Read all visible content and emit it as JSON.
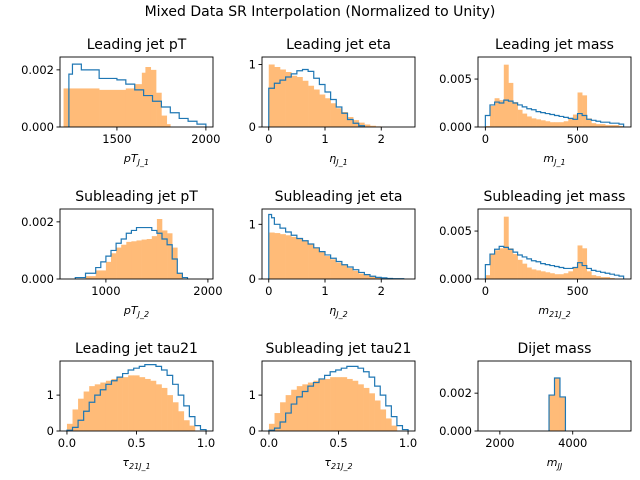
{
  "colors": {
    "filled": "#ffbb78",
    "step": "#1f77b4"
  },
  "chart_data": {
    "title": "Mixed Data SR Interpolation (Normalized to Unity)",
    "panels": [
      {
        "type": "histogram",
        "title": "Leading jet pT",
        "xlabel": "pT_{J_1}",
        "xlim": [
          1180,
          2040
        ],
        "ylim": [
          0,
          0.00245
        ],
        "xticks": [
          1500,
          2000
        ],
        "xtick_labels": [
          "1500",
          "2000"
        ],
        "yticks": [
          0,
          0.002
        ],
        "ytick_labels": [
          "0.000",
          "0.002"
        ],
        "filled": {
          "edges": [
            1200,
            1400,
            1550,
            1600,
            1640,
            1660,
            1690,
            1720,
            1750,
            1780,
            1800
          ],
          "values": [
            0.00135,
            0.0013,
            0.00135,
            0.0015,
            0.0019,
            0.0021,
            0.002,
            0.0012,
            0.0004,
            0.0001
          ]
        },
        "step": {
          "edges": [
            1230,
            1250,
            1300,
            1400,
            1500,
            1550,
            1600,
            1650,
            1700,
            1750,
            1800,
            1850,
            1900,
            1950,
            2000
          ],
          "values": [
            0.00185,
            0.0022,
            0.002,
            0.0017,
            0.00165,
            0.0015,
            0.0013,
            0.0011,
            0.0009,
            0.0007,
            0.0005,
            0.0003,
            0.0002,
            0.0001
          ]
        }
      },
      {
        "type": "histogram",
        "title": "Leading jet eta",
        "xlabel": "η_{J_1}",
        "xlim": [
          -0.12,
          2.6
        ],
        "ylim": [
          0,
          1.12
        ],
        "xticks": [
          0,
          1,
          2
        ],
        "xtick_labels": [
          "0",
          "1",
          "2"
        ],
        "yticks": [
          0,
          1
        ],
        "ytick_labels": [
          "0",
          "1"
        ],
        "filled": {
          "edges": [
            0,
            0.1,
            0.2,
            0.3,
            0.4,
            0.5,
            0.6,
            0.7,
            0.8,
            0.9,
            1.0,
            1.1,
            1.2,
            1.3,
            1.4,
            1.5,
            1.6,
            1.7,
            1.8,
            1.9,
            2.0
          ],
          "values": [
            1.0,
            0.96,
            0.92,
            0.88,
            0.82,
            0.8,
            0.74,
            0.66,
            0.6,
            0.52,
            0.46,
            0.38,
            0.3,
            0.24,
            0.16,
            0.11,
            0.07,
            0.04,
            0.02,
            0.01
          ]
        },
        "step": {
          "edges": [
            0,
            0.1,
            0.2,
            0.3,
            0.4,
            0.5,
            0.6,
            0.7,
            0.8,
            0.9,
            1.0,
            1.1,
            1.2,
            1.3,
            1.4,
            1.5,
            1.6,
            1.7
          ],
          "values": [
            0.62,
            0.7,
            0.75,
            0.8,
            0.85,
            0.9,
            0.92,
            0.89,
            0.78,
            0.68,
            0.56,
            0.44,
            0.32,
            0.22,
            0.12,
            0.06,
            0.02
          ]
        }
      },
      {
        "type": "histogram",
        "title": "Leading jet mass",
        "xlabel": "m_{J_1}",
        "xlim": [
          -40,
          790
        ],
        "ylim": [
          0,
          0.0073
        ],
        "xticks": [
          0,
          500
        ],
        "xtick_labels": [
          "0",
          "500"
        ],
        "yticks": [
          0,
          0.005
        ],
        "ytick_labels": [
          "0.000",
          "0.005"
        ],
        "filled": {
          "edges": [
            0,
            25,
            50,
            75,
            100,
            125,
            150,
            175,
            200,
            225,
            250,
            275,
            300,
            325,
            350,
            375,
            400,
            425,
            450,
            475,
            500,
            525,
            550,
            575,
            600,
            625,
            650,
            675,
            700,
            725,
            750
          ],
          "values": [
            0.0001,
            0.0022,
            0.003,
            0.0028,
            0.0065,
            0.0046,
            0.0026,
            0.0018,
            0.0014,
            0.0011,
            0.0009,
            0.0008,
            0.0007,
            0.0006,
            0.0005,
            0.0005,
            0.0005,
            0.0006,
            0.0009,
            0.0013,
            0.0036,
            0.0033,
            0.0009,
            0.0004,
            0.0003,
            0.0003,
            0.0002,
            0.0002,
            0.0002,
            0.0001
          ]
        },
        "step": {
          "edges": [
            0,
            25,
            50,
            75,
            100,
            125,
            150,
            175,
            200,
            225,
            250,
            275,
            300,
            325,
            350,
            375,
            400,
            425,
            450,
            475,
            500,
            525,
            550,
            575,
            600,
            625,
            650,
            675,
            700,
            725,
            750
          ],
          "values": [
            0.0012,
            0.0023,
            0.0026,
            0.0025,
            0.0028,
            0.0027,
            0.0025,
            0.0023,
            0.0021,
            0.0019,
            0.0018,
            0.0016,
            0.0015,
            0.0014,
            0.0013,
            0.0012,
            0.0011,
            0.001,
            0.0009,
            0.0008,
            0.0014,
            0.0012,
            0.0008,
            0.0007,
            0.0006,
            0.0005,
            0.0005,
            0.0004,
            0.0004,
            0.0003
          ]
        }
      },
      {
        "type": "histogram",
        "title": "Subleading jet pT",
        "xlabel": "pT_{J_2}",
        "xlim": [
          550,
          2050
        ],
        "ylim": [
          0,
          0.00245
        ],
        "xticks": [
          1000,
          2000
        ],
        "xtick_labels": [
          "1000",
          "2000"
        ],
        "yticks": [
          0,
          0.002
        ],
        "ytick_labels": [
          "0.000",
          "0.002"
        ],
        "filled": {
          "edges": [
            800,
            900,
            1000,
            1050,
            1100,
            1150,
            1200,
            1250,
            1300,
            1350,
            1400,
            1450,
            1500,
            1550,
            1600,
            1650,
            1700,
            1750
          ],
          "values": [
            0.0001,
            0.0003,
            0.0006,
            0.0009,
            0.0011,
            0.0012,
            0.0013,
            0.00132,
            0.00135,
            0.00138,
            0.0014,
            0.0015,
            0.0021,
            0.0017,
            0.0016,
            0.0011,
            0.0002
          ]
        },
        "step": {
          "edges": [
            700,
            800,
            900,
            950,
            1000,
            1050,
            1100,
            1150,
            1200,
            1250,
            1300,
            1350,
            1400,
            1450,
            1500,
            1550,
            1600,
            1650,
            1700,
            1750,
            1800
          ],
          "values": [
            5e-05,
            0.0002,
            0.0004,
            0.0006,
            0.0008,
            0.001,
            0.00125,
            0.0014,
            0.0016,
            0.0017,
            0.0018,
            0.0018,
            0.0018,
            0.0017,
            0.0016,
            0.0014,
            0.0012,
            0.0007,
            0.0002,
            5e-05
          ]
        }
      },
      {
        "type": "histogram",
        "title": "Subleading jet eta",
        "xlabel": "η_{J_2}",
        "xlim": [
          -0.12,
          2.6
        ],
        "ylim": [
          0,
          1.28
        ],
        "xticks": [
          0,
          1,
          2
        ],
        "xtick_labels": [
          "0",
          "1",
          "2"
        ],
        "yticks": [
          0,
          1
        ],
        "ytick_labels": [
          "0",
          "1"
        ],
        "filled": {
          "edges": [
            0,
            0.1,
            0.2,
            0.3,
            0.4,
            0.5,
            0.6,
            0.7,
            0.8,
            0.9,
            1.0,
            1.1,
            1.2,
            1.3,
            1.4,
            1.5,
            1.6,
            1.7,
            1.8,
            1.9,
            2.0
          ],
          "values": [
            0.85,
            0.84,
            0.82,
            0.8,
            0.77,
            0.74,
            0.7,
            0.64,
            0.57,
            0.5,
            0.42,
            0.36,
            0.3,
            0.25,
            0.2,
            0.15,
            0.1,
            0.07,
            0.05,
            0.03
          ]
        },
        "step": {
          "edges": [
            0,
            0.05,
            0.1,
            0.2,
            0.3,
            0.4,
            0.5,
            0.6,
            0.7,
            0.8,
            0.9,
            1.0,
            1.1,
            1.2,
            1.3,
            1.4,
            1.5,
            1.6,
            1.7,
            1.8,
            1.9,
            2.0,
            2.1,
            2.2,
            2.3,
            2.4
          ],
          "values": [
            1.18,
            1.12,
            1.0,
            0.93,
            0.86,
            0.8,
            0.74,
            0.7,
            0.64,
            0.57,
            0.5,
            0.44,
            0.38,
            0.32,
            0.26,
            0.22,
            0.17,
            0.12,
            0.08,
            0.05,
            0.03,
            0.02,
            0.01,
            0.005,
            0.005
          ]
        }
      },
      {
        "type": "histogram",
        "title": "Subleading jet mass",
        "xlabel": "m_{21J_2}",
        "xlim": [
          -40,
          790
        ],
        "ylim": [
          0,
          0.0073
        ],
        "xticks": [
          0,
          500
        ],
        "xtick_labels": [
          "0",
          "500"
        ],
        "yticks": [
          0,
          0.005
        ],
        "ytick_labels": [
          "0.000",
          "0.005"
        ],
        "filled": {
          "edges": [
            0,
            25,
            50,
            75,
            100,
            125,
            150,
            175,
            200,
            225,
            250,
            275,
            300,
            325,
            350,
            375,
            400,
            425,
            450,
            475,
            500,
            525,
            550,
            575,
            600,
            625,
            650,
            675,
            700
          ],
          "values": [
            0.0004,
            0.0026,
            0.003,
            0.0032,
            0.0065,
            0.0032,
            0.0026,
            0.002,
            0.0016,
            0.0012,
            0.001,
            0.0009,
            0.0008,
            0.0007,
            0.0006,
            0.0005,
            0.0005,
            0.0006,
            0.0008,
            0.0012,
            0.0035,
            0.0032,
            0.0008,
            0.0004,
            0.0003,
            0.0002,
            0.0002,
            0.0001
          ]
        },
        "step": {
          "edges": [
            0,
            25,
            50,
            75,
            100,
            125,
            150,
            175,
            200,
            225,
            250,
            275,
            300,
            325,
            350,
            375,
            400,
            425,
            450,
            475,
            500,
            525,
            550,
            575,
            600,
            625,
            650,
            675,
            700,
            725,
            750
          ],
          "values": [
            0.0015,
            0.0026,
            0.0031,
            0.0034,
            0.0033,
            0.0031,
            0.0028,
            0.0025,
            0.0023,
            0.0021,
            0.0019,
            0.0018,
            0.0016,
            0.0015,
            0.0014,
            0.0013,
            0.0012,
            0.0011,
            0.0011,
            0.0012,
            0.0017,
            0.0014,
            0.0011,
            0.0009,
            0.0008,
            0.0007,
            0.0006,
            0.0005,
            0.0004,
            0.0003
          ]
        }
      },
      {
        "type": "histogram",
        "title": "Leading jet tau21",
        "xlabel": "τ_{21J_1}",
        "xlim": [
          -0.05,
          1.05
        ],
        "ylim": [
          0,
          1.95
        ],
        "xticks": [
          0.0,
          0.5,
          1.0
        ],
        "xtick_labels": [
          "0.0",
          "0.5",
          "1.0"
        ],
        "yticks": [
          0,
          1
        ],
        "ytick_labels": [
          "0",
          "1"
        ],
        "filled": {
          "edges": [
            0.0,
            0.04,
            0.08,
            0.12,
            0.16,
            0.2,
            0.24,
            0.28,
            0.32,
            0.36,
            0.4,
            0.44,
            0.48,
            0.52,
            0.56,
            0.6,
            0.64,
            0.68,
            0.72,
            0.76,
            0.8,
            0.84,
            0.88,
            0.92
          ],
          "values": [
            0.2,
            0.6,
            0.9,
            1.1,
            1.25,
            1.3,
            1.35,
            1.4,
            1.45,
            1.5,
            1.5,
            1.55,
            1.55,
            1.5,
            1.45,
            1.4,
            1.3,
            1.2,
            1.0,
            0.8,
            0.55,
            0.3,
            0.15
          ]
        },
        "step": {
          "edges": [
            0.0,
            0.04,
            0.08,
            0.12,
            0.16,
            0.2,
            0.24,
            0.28,
            0.32,
            0.36,
            0.4,
            0.44,
            0.48,
            0.52,
            0.56,
            0.6,
            0.64,
            0.68,
            0.72,
            0.76,
            0.8,
            0.84,
            0.88,
            0.92,
            0.96,
            1.0
          ],
          "values": [
            0.02,
            0.1,
            0.3,
            0.55,
            0.8,
            1.0,
            1.15,
            1.3,
            1.4,
            1.5,
            1.6,
            1.7,
            1.75,
            1.8,
            1.85,
            1.85,
            1.8,
            1.7,
            1.55,
            1.3,
            1.0,
            0.7,
            0.4,
            0.15,
            0.04
          ]
        }
      },
      {
        "type": "histogram",
        "title": "Subleading jet tau21",
        "xlabel": "τ_{21J_2}",
        "xlim": [
          -0.05,
          1.05
        ],
        "ylim": [
          0,
          1.95
        ],
        "xticks": [
          0.0,
          0.5,
          1.0
        ],
        "xtick_labels": [
          "0.0",
          "0.5",
          "1.0"
        ],
        "yticks": [
          0,
          1
        ],
        "ytick_labels": [
          "0",
          "1"
        ],
        "filled": {
          "edges": [
            0.0,
            0.04,
            0.08,
            0.12,
            0.16,
            0.2,
            0.24,
            0.28,
            0.32,
            0.36,
            0.4,
            0.44,
            0.48,
            0.52,
            0.56,
            0.6,
            0.64,
            0.68,
            0.72,
            0.76,
            0.8,
            0.84,
            0.88,
            0.92
          ],
          "values": [
            0.2,
            0.5,
            0.8,
            1.0,
            1.15,
            1.25,
            1.3,
            1.35,
            1.4,
            1.45,
            1.45,
            1.5,
            1.5,
            1.5,
            1.45,
            1.4,
            1.3,
            1.2,
            1.05,
            0.85,
            0.6,
            0.35,
            0.15
          ]
        },
        "step": {
          "edges": [
            0.0,
            0.04,
            0.08,
            0.12,
            0.16,
            0.2,
            0.24,
            0.28,
            0.32,
            0.36,
            0.4,
            0.44,
            0.48,
            0.52,
            0.56,
            0.6,
            0.64,
            0.68,
            0.72,
            0.76,
            0.8,
            0.84,
            0.88,
            0.92,
            0.96,
            1.0
          ],
          "values": [
            0.02,
            0.08,
            0.25,
            0.5,
            0.75,
            0.95,
            1.1,
            1.25,
            1.35,
            1.45,
            1.55,
            1.65,
            1.7,
            1.75,
            1.8,
            1.8,
            1.75,
            1.65,
            1.5,
            1.25,
            1.0,
            0.7,
            0.4,
            0.15,
            0.04
          ]
        }
      },
      {
        "type": "histogram",
        "title": "Dijet mass",
        "xlabel": "m_{JJ}",
        "xlim": [
          1400,
          5600
        ],
        "ylim": [
          0,
          0.0037
        ],
        "xticks": [
          2000,
          4000
        ],
        "xtick_labels": [
          "2000",
          "4000"
        ],
        "yticks": [
          0,
          0.002
        ],
        "ytick_labels": [
          "0.000",
          "0.002"
        ],
        "filled": {
          "edges": [
            3350,
            3500,
            3650,
            3800
          ],
          "values": [
            0.0019,
            0.0028,
            0.0018
          ]
        },
        "step": {
          "edges": [
            3350,
            3500,
            3650,
            3800
          ],
          "values": [
            0.0019,
            0.0028,
            0.0018
          ]
        }
      }
    ]
  }
}
